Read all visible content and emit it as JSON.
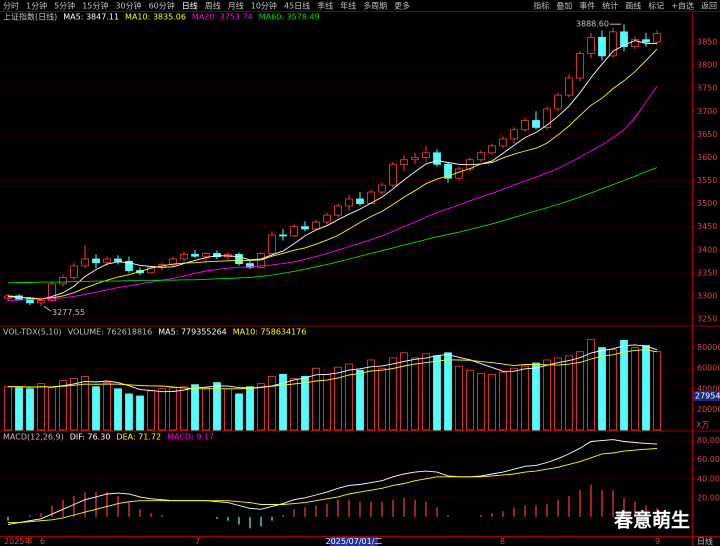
{
  "toolbar": {
    "tabs": [
      "分时",
      "1分钟",
      "5分钟",
      "15分钟",
      "30分钟",
      "60分钟",
      "日线",
      "周线",
      "月线",
      "10分钟",
      "45日线",
      "季线",
      "年线",
      "多周期",
      "更多"
    ],
    "tools": [
      "指标",
      "叠加",
      "事件",
      "统计",
      "画线",
      "标记",
      "+自选",
      "返回"
    ]
  },
  "footer": {
    "labels": [
      "2025年",
      "6",
      "7",
      "8",
      "9"
    ],
    "cursor_date": "2025/07/01/二",
    "period": "日线"
  },
  "watermark": "春意萌生",
  "chart_data": [
    {
      "type": "candlestick",
      "title": "上证指数(日线)",
      "up_color": "#ff3c3c",
      "down_color": "#54fcfc",
      "grid": true,
      "open": [
        3295,
        3300,
        3293,
        3285,
        3290,
        3326,
        3340,
        3365,
        3380,
        3372,
        3380,
        3375,
        3355,
        3350,
        3362,
        3368,
        3380,
        3390,
        3386,
        3392,
        3385,
        3390,
        3370,
        3362,
        3392,
        3432,
        3430,
        3450,
        3445,
        3460,
        3475,
        3495,
        3510,
        3500,
        3525,
        3540,
        3585,
        3595,
        3600,
        3610,
        3585,
        3555,
        3575,
        3595,
        3610,
        3625,
        3640,
        3660,
        3680,
        3665,
        3705,
        3735,
        3772,
        3825,
        3860,
        3820,
        3872,
        3840,
        3855,
        3850
      ],
      "high": [
        3305,
        3304,
        3298,
        3292,
        3330,
        3345,
        3372,
        3410,
        3390,
        3385,
        3388,
        3385,
        3362,
        3365,
        3372,
        3385,
        3395,
        3400,
        3395,
        3398,
        3395,
        3394,
        3375,
        3395,
        3440,
        3445,
        3455,
        3462,
        3465,
        3480,
        3500,
        3520,
        3525,
        3530,
        3545,
        3590,
        3605,
        3610,
        3625,
        3618,
        3590,
        3580,
        3600,
        3615,
        3630,
        3645,
        3665,
        3685,
        3700,
        3710,
        3740,
        3780,
        3830,
        3870,
        3875,
        3880,
        3888.6,
        3862,
        3870,
        3875
      ],
      "low": [
        3288,
        3290,
        3280,
        3277.55,
        3288,
        3320,
        3335,
        3360,
        3360,
        3365,
        3368,
        3350,
        3345,
        3348,
        3355,
        3362,
        3375,
        3382,
        3375,
        3380,
        3378,
        3365,
        3358,
        3360,
        3390,
        3420,
        3428,
        3440,
        3442,
        3455,
        3470,
        3485,
        3495,
        3498,
        3520,
        3535,
        3570,
        3585,
        3590,
        3580,
        3545,
        3550,
        3570,
        3590,
        3605,
        3620,
        3630,
        3655,
        3660,
        3660,
        3700,
        3730,
        3765,
        3815,
        3810,
        3815,
        3830,
        3835,
        3840,
        3845
      ],
      "close": [
        3300,
        3293,
        3285,
        3290,
        3326,
        3340,
        3365,
        3380,
        3372,
        3380,
        3375,
        3355,
        3350,
        3362,
        3368,
        3380,
        3390,
        3386,
        3392,
        3385,
        3390,
        3370,
        3362,
        3392,
        3432,
        3430,
        3450,
        3445,
        3460,
        3475,
        3495,
        3510,
        3500,
        3525,
        3540,
        3585,
        3595,
        3600,
        3610,
        3585,
        3555,
        3575,
        3595,
        3610,
        3625,
        3640,
        3660,
        3680,
        3665,
        3705,
        3735,
        3772,
        3825,
        3860,
        3820,
        3872,
        3840,
        3855,
        3850,
        3868
      ],
      "high_label": "3888.60",
      "low_label": "3277.55",
      "series": [
        {
          "name": "MA5: 3847.11",
          "color": "#ffffff",
          "values": [
            3300,
            3298,
            3294,
            3292,
            3299,
            3307,
            3321,
            3342,
            3357,
            3369,
            3374,
            3372,
            3366,
            3364,
            3362,
            3363,
            3370,
            3377,
            3383,
            3387,
            3387,
            3385,
            3378,
            3380,
            3389,
            3397,
            3413,
            3430,
            3443,
            3452,
            3465,
            3477,
            3488,
            3501,
            3514,
            3532,
            3551,
            3569,
            3586,
            3593,
            3589,
            3585,
            3584,
            3586,
            3592,
            3609,
            3626,
            3643,
            3654,
            3670,
            3689,
            3711,
            3740,
            3773,
            3802,
            3830,
            3843,
            3853,
            3847,
            3847
          ]
        },
        {
          "name": "MA10: 3835.06",
          "color": "#ffff00",
          "values": [
            3298,
            3297,
            3296,
            3294,
            3296,
            3300,
            3307,
            3317,
            3326,
            3334,
            3341,
            3346,
            3353,
            3360,
            3365,
            3369,
            3371,
            3372,
            3374,
            3375,
            3376,
            3377,
            3377,
            3378,
            3386,
            3392,
            3399,
            3404,
            3412,
            3421,
            3431,
            3445,
            3459,
            3472,
            3483,
            3498,
            3514,
            3528,
            3543,
            3553,
            3560,
            3568,
            3576,
            3586,
            3589,
            3599,
            3607,
            3614,
            3620,
            3631,
            3649,
            3668,
            3691,
            3713,
            3728,
            3749,
            3766,
            3786,
            3810,
            3835
          ]
        },
        {
          "name": "MA20: 3753.74",
          "color": "#ff00ff",
          "values": [
            3290,
            3291,
            3292,
            3293,
            3294,
            3296,
            3299,
            3303,
            3308,
            3313,
            3318,
            3322,
            3326,
            3330,
            3334,
            3338,
            3343,
            3349,
            3354,
            3357,
            3360,
            3362,
            3363,
            3365,
            3367,
            3370,
            3374,
            3379,
            3385,
            3392,
            3399,
            3407,
            3414,
            3422,
            3430,
            3440,
            3450,
            3460,
            3471,
            3480,
            3489,
            3497,
            3506,
            3514,
            3522,
            3531,
            3540,
            3549,
            3557,
            3566,
            3576,
            3588,
            3600,
            3614,
            3627,
            3643,
            3660,
            3686,
            3720,
            3754
          ]
        },
        {
          "name": "MA60: 3578.49",
          "color": "#00e000",
          "values": [
            3328,
            3329,
            3329,
            3330,
            3330,
            3330,
            3331,
            3331,
            3332,
            3332,
            3332,
            3333,
            3333,
            3333,
            3334,
            3334,
            3335,
            3335,
            3336,
            3337,
            3338,
            3339,
            3340,
            3342,
            3345,
            3349,
            3353,
            3358,
            3363,
            3368,
            3374,
            3380,
            3386,
            3392,
            3398,
            3404,
            3410,
            3416,
            3422,
            3428,
            3433,
            3438,
            3444,
            3450,
            3456,
            3463,
            3470,
            3477,
            3484,
            3491,
            3498,
            3506,
            3514,
            3523,
            3532,
            3541,
            3550,
            3559,
            3569,
            3578
          ]
        }
      ],
      "ylim": [
        3237,
        3915
      ],
      "yticks": [
        3250,
        3300,
        3350,
        3400,
        3450,
        3500,
        3550,
        3600,
        3650,
        3700,
        3750,
        3800,
        3850
      ]
    },
    {
      "type": "bar",
      "title": "VOL-TDX(5,10)",
      "up_color": "#ff3c3c",
      "down_color": "#54fcfc",
      "grid": true,
      "cursor_label": "27954",
      "unit": "X万",
      "series": [
        {
          "name": "VOLUME: 762618816",
          "color": "#c0c0c0",
          "type": "bar",
          "values": [
            42000,
            41000,
            40000,
            45000,
            41000,
            48000,
            50000,
            52000,
            42000,
            46000,
            40000,
            35000,
            33000,
            38000,
            40000,
            41000,
            42000,
            44000,
            41000,
            46000,
            40000,
            35000,
            42000,
            45000,
            52000,
            54000,
            50000,
            52000,
            60000,
            54000,
            61000,
            64000,
            58000,
            68000,
            60000,
            70000,
            75000,
            70000,
            74000,
            72000,
            75000,
            62000,
            58000,
            55000,
            54000,
            56000,
            60000,
            62000,
            65000,
            68000,
            70000,
            72000,
            76000,
            88000,
            80000,
            78000,
            87000,
            80000,
            82000,
            76262
          ]
        },
        {
          "name": "MA5: 779355264",
          "color": "#ffffff",
          "values": [
            42000,
            42000,
            41500,
            42000,
            41800,
            43000,
            44800,
            47200,
            46600,
            47600,
            46000,
            43000,
            39200,
            38400,
            37200,
            37400,
            38800,
            41000,
            41600,
            42800,
            42600,
            41200,
            40800,
            41600,
            42800,
            45600,
            48600,
            50600,
            53600,
            54000,
            55400,
            58200,
            59400,
            61400,
            62200,
            64200,
            66600,
            68600,
            69800,
            72200,
            73200,
            70600,
            68200,
            64400,
            60800,
            57000,
            57000,
            59400,
            60200,
            62800,
            65400,
            67400,
            70200,
            74800,
            77200,
            78800,
            81800,
            82600,
            81400,
            77936
          ]
        },
        {
          "name": "MA10: 758634176",
          "color": "#ffff00",
          "values": [
            42000,
            42000,
            41800,
            41800,
            41800,
            42400,
            43400,
            44600,
            44400,
            44700,
            44500,
            43900,
            43200,
            42800,
            42700,
            41700,
            40900,
            40100,
            40000,
            40100,
            40000,
            40000,
            40400,
            41300,
            42400,
            43700,
            44700,
            45800,
            47600,
            48400,
            50500,
            53400,
            55000,
            57300,
            58100,
            59700,
            62100,
            64000,
            65400,
            66800,
            68200,
            68000,
            67700,
            66400,
            65400,
            64000,
            62500,
            63600,
            63700,
            63300,
            63000,
            64000,
            65600,
            68900,
            71700,
            73000,
            75600,
            77300,
            78000,
            75863
          ]
        }
      ],
      "ylim": [
        0,
        100000
      ],
      "yticks": [
        20000,
        40000,
        60000,
        80000
      ]
    },
    {
      "type": "macd",
      "title": "MACD(12,26,9)",
      "up_color": "#ff3c3c",
      "down_color": "#54fcfc",
      "grid": true,
      "series": [
        {
          "name": "DIF: 76.30",
          "color": "#ffffff",
          "values": [
            -8,
            -6,
            -4,
            -2,
            3,
            8,
            13,
            18,
            21,
            24,
            25,
            24,
            21,
            19,
            18,
            17,
            17,
            17,
            17,
            16,
            15,
            12,
            9,
            8,
            11,
            14,
            18,
            20,
            23,
            26,
            30,
            33,
            34,
            36,
            38,
            42,
            45,
            47,
            48,
            47,
            43,
            42,
            42,
            43,
            45,
            47,
            50,
            53,
            54,
            57,
            61,
            66,
            72,
            79,
            80,
            81,
            79,
            78,
            77,
            76.3
          ]
        },
        {
          "name": "DEA: 71.72",
          "color": "#ffff00",
          "values": [
            -6,
            -6,
            -5,
            -4,
            -3,
            -1,
            2,
            5,
            8,
            11,
            14,
            16,
            17,
            17,
            17,
            17,
            17,
            17,
            17,
            17,
            17,
            16,
            15,
            13,
            13,
            13,
            14,
            15,
            17,
            19,
            21,
            24,
            26,
            28,
            30,
            33,
            35,
            38,
            40,
            42,
            42,
            42,
            42,
            42,
            43,
            44,
            45,
            47,
            48,
            50,
            52,
            55,
            58,
            62,
            66,
            67,
            69,
            70,
            71,
            71.72
          ]
        },
        {
          "name": "MACD: 9.17",
          "color": "#ff00ff",
          "type": "bar",
          "values": [
            -4,
            0,
            2,
            4,
            12,
            18,
            22,
            26,
            26,
            26,
            22,
            16,
            8,
            4,
            2,
            0,
            0,
            0,
            0,
            -2,
            -4,
            -8,
            -12,
            -10,
            -4,
            2,
            8,
            10,
            12,
            14,
            18,
            18,
            16,
            16,
            16,
            18,
            20,
            18,
            16,
            10,
            2,
            0,
            0,
            2,
            4,
            6,
            10,
            12,
            12,
            14,
            18,
            22,
            28,
            34,
            28,
            28,
            20,
            16,
            12,
            9.17
          ]
        }
      ],
      "ylim": [
        -20,
        89
      ],
      "yticks": [
        {
          "value": 20,
          "label": "20.00"
        },
        {
          "value": 40,
          "label": "40.00"
        },
        {
          "value": 60,
          "label": "60.00"
        },
        {
          "value": 80,
          "label": "80.00"
        }
      ]
    }
  ]
}
